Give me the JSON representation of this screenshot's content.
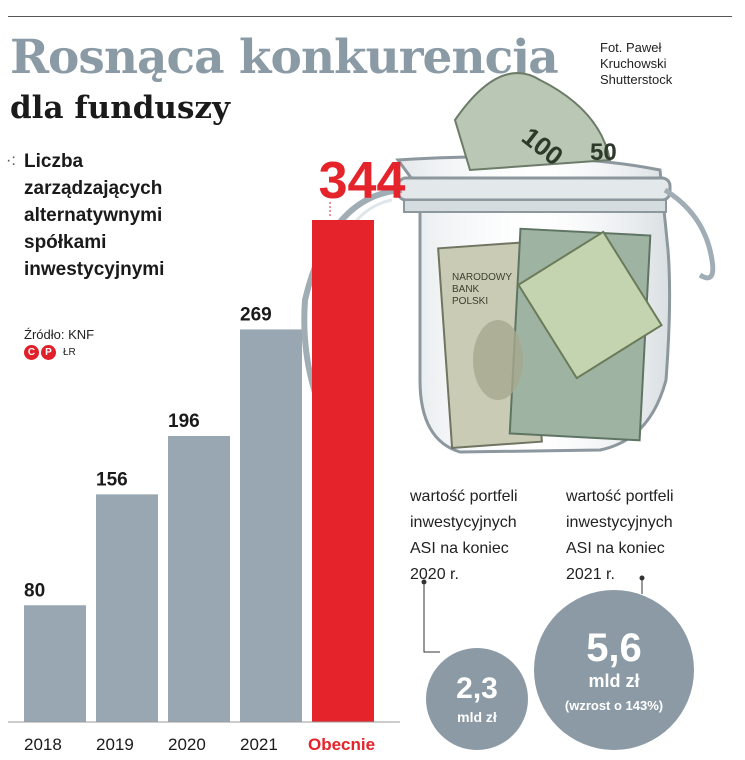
{
  "header": {
    "title": "Rosnąca konkurencja",
    "subtitle": "dla funduszy",
    "photo_credit": [
      "Fot. Paweł",
      "Kruchowski",
      "Shutterstock"
    ]
  },
  "description": {
    "bullet": "·:",
    "lines": [
      "Liczba",
      "zarządzających",
      "alternatywnymi",
      "spółkami",
      "inwestycyjnymi"
    ]
  },
  "source": {
    "text": "Źródło: KNF",
    "badges": [
      "C",
      "P"
    ],
    "mark": "ŁR"
  },
  "colors": {
    "bar": "#98a7b1",
    "highlight": "#e5232b",
    "bubble": "#8b9aa5",
    "title": "#8b9ba6"
  },
  "chart_data": {
    "type": "bar",
    "categories": [
      "2018",
      "2019",
      "2020",
      "2021",
      "Obecnie"
    ],
    "values": [
      80,
      156,
      196,
      269,
      344
    ],
    "highlight_index": 4,
    "ylim": [
      0,
      344
    ]
  },
  "bubbles": [
    {
      "caption": [
        "wartość portfeli",
        "inwestycyjnych",
        "ASI na koniec",
        "2020 r."
      ],
      "value": "2,3",
      "unit": "mld zł"
    },
    {
      "caption": [
        "wartość portfeli",
        "inwestycyjnych",
        "ASI na koniec",
        "2021 r."
      ],
      "value": "5,6",
      "unit": "mld zł",
      "note": "(wzrost o 143%)"
    }
  ],
  "illustration": {
    "icon": "money-jar-illustration",
    "banknote_text": [
      "100",
      "50",
      "NARODOWY",
      "BANK",
      "POLSKI"
    ]
  }
}
